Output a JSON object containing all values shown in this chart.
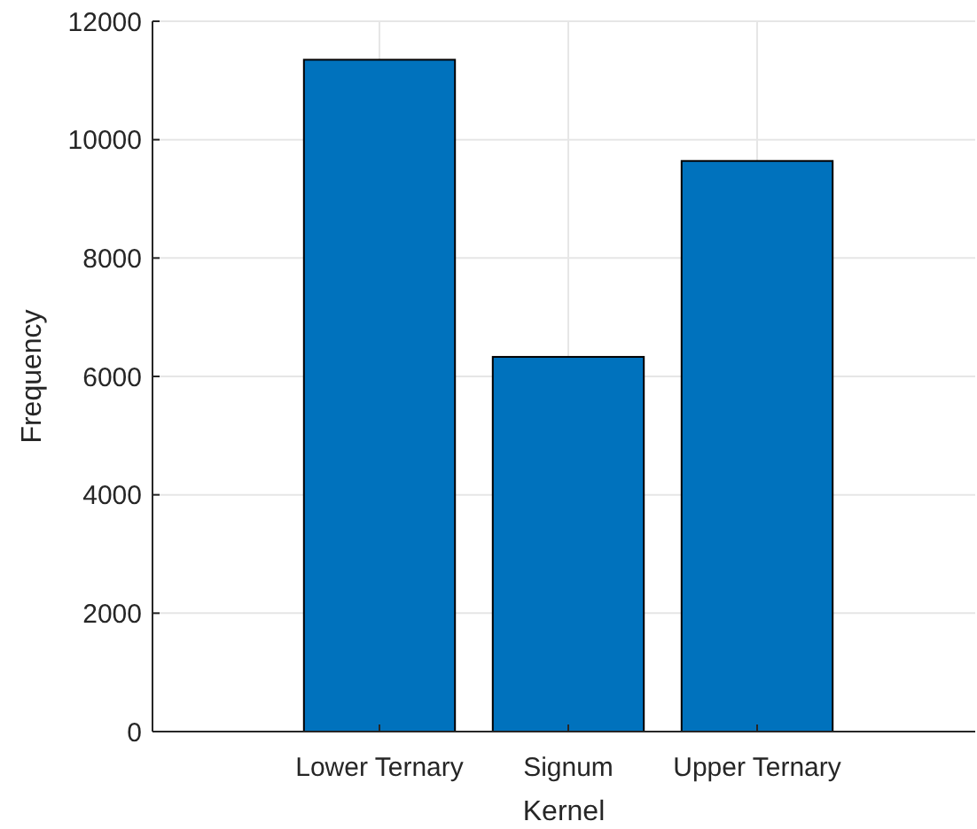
{
  "chart_data": {
    "type": "bar",
    "xlabel": "Kernel",
    "ylabel": "Frequency",
    "categories": [
      "Lower Ternary",
      "Signum",
      "Upper Ternary"
    ],
    "values": [
      11350,
      6330,
      9640
    ],
    "color": "#0072bd",
    "ylim": [
      0,
      12000
    ],
    "yticks": [
      0,
      2000,
      4000,
      6000,
      8000,
      10000,
      12000
    ],
    "grid": true
  }
}
